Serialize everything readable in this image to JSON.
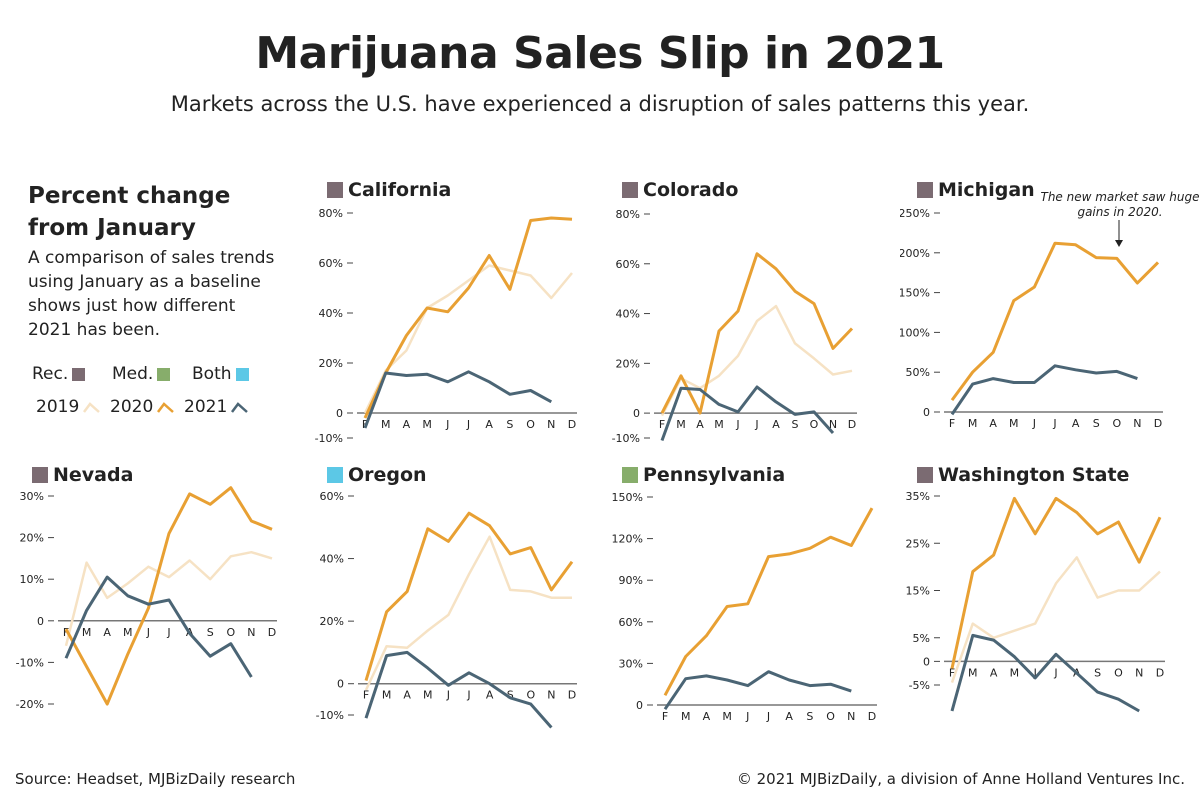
{
  "header": {
    "title": "Marijuana Sales Slip in 2021",
    "subtitle": "Markets across the U.S. have experienced a disruption of sales patterns this year."
  },
  "intro": {
    "heading": "Percent change from January",
    "text": "A comparison of sales trends using January as a baseline shows just how different 2021 has been."
  },
  "legend": {
    "types": [
      {
        "label": "Rec.",
        "color": "#7b6b72"
      },
      {
        "label": "Med.",
        "color": "#87ad6b"
      },
      {
        "label": "Both",
        "color": "#5cc8e6"
      }
    ],
    "years": [
      {
        "label": "2019",
        "color": "#f6e2c4"
      },
      {
        "label": "2020",
        "color": "#e8a033"
      },
      {
        "label": "2021",
        "color": "#4b6575"
      }
    ]
  },
  "annotation": "The new market saw huge gains in 2020.",
  "footer": {
    "source": "Source: Headset, MJBizDaily research",
    "copyright": "© 2021 MJBizDaily, a division of Anne Holland Ventures Inc."
  },
  "chart_data": [
    {
      "type": "line",
      "title": "California",
      "market": "Rec.",
      "ylim": [
        -10,
        80
      ],
      "yticks": [
        {
          "v": 80,
          "label": "80%"
        },
        {
          "v": 60,
          "label": "60%"
        },
        {
          "v": 40,
          "label": "40%"
        },
        {
          "v": 20,
          "label": "20%"
        },
        {
          "v": 0,
          "label": "0"
        },
        {
          "v": -10,
          "label": "-10%"
        }
      ],
      "months": [
        "F",
        "M",
        "A",
        "M",
        "J",
        "J",
        "A",
        "S",
        "O",
        "N",
        "D"
      ],
      "series": [
        {
          "name": "2019",
          "values": [
            0,
            17,
            25,
            42,
            47,
            53,
            59,
            57,
            55,
            46,
            56
          ]
        },
        {
          "name": "2020",
          "values": [
            -2,
            16,
            31,
            42,
            40.5,
            50,
            63,
            49.5,
            77,
            78,
            77.5
          ]
        },
        {
          "name": "2021",
          "values": [
            -6,
            16,
            15,
            15.5,
            12.5,
            16.5,
            12.5,
            7.5,
            9,
            4.5
          ]
        }
      ]
    },
    {
      "type": "line",
      "title": "Colorado",
      "market": "Rec.",
      "ylim": [
        -10,
        80
      ],
      "yticks": [
        {
          "v": 80,
          "label": "80%"
        },
        {
          "v": 60,
          "label": "60%"
        },
        {
          "v": 40,
          "label": "40%"
        },
        {
          "v": 20,
          "label": "20%"
        },
        {
          "v": 0,
          "label": "0"
        },
        {
          "v": -10,
          "label": "-10%"
        }
      ],
      "months": [
        "F",
        "M",
        "A",
        "M",
        "J",
        "J",
        "A",
        "S",
        "O",
        "N",
        "D"
      ],
      "series": [
        {
          "name": "2019",
          "values": [
            -1,
            14,
            10,
            15,
            23,
            37,
            43,
            28,
            22,
            15.5,
            17
          ]
        },
        {
          "name": "2020",
          "values": [
            0,
            15,
            0,
            33,
            41,
            64,
            58,
            49,
            44,
            26,
            34
          ]
        },
        {
          "name": "2021",
          "values": [
            -11,
            10,
            9.5,
            3.5,
            0.5,
            10.5,
            4.5,
            -0.5,
            0.5,
            -8
          ]
        }
      ]
    },
    {
      "type": "line",
      "title": "Michigan",
      "market": "Rec.",
      "ylim": [
        0,
        250
      ],
      "yticks": [
        {
          "v": 250,
          "label": "250%"
        },
        {
          "v": 200,
          "label": "200%"
        },
        {
          "v": 150,
          "label": "150%"
        },
        {
          "v": 100,
          "label": "100%"
        },
        {
          "v": 50,
          "label": "50%"
        },
        {
          "v": 0,
          "label": "0"
        }
      ],
      "months": [
        "F",
        "M",
        "A",
        "M",
        "J",
        "J",
        "A",
        "S",
        "O",
        "N",
        "D"
      ],
      "series": [
        {
          "name": "2020",
          "values": [
            15,
            50,
            75,
            140,
            157,
            212,
            210,
            194,
            193,
            162,
            188
          ]
        },
        {
          "name": "2021",
          "values": [
            -3,
            35,
            42,
            37,
            37,
            58,
            53,
            49,
            51,
            42
          ]
        }
      ]
    },
    {
      "type": "line",
      "title": "Nevada",
      "market": "Rec.",
      "ylim": [
        -20,
        30
      ],
      "yticks": [
        {
          "v": 30,
          "label": "30%"
        },
        {
          "v": 20,
          "label": "20%"
        },
        {
          "v": 10,
          "label": "10%"
        },
        {
          "v": 0,
          "label": "0"
        },
        {
          "v": -10,
          "label": "-10%"
        },
        {
          "v": -20,
          "label": "-20%"
        }
      ],
      "months": [
        "F",
        "M",
        "A",
        "M",
        "J",
        "J",
        "A",
        "S",
        "O",
        "N",
        "D"
      ],
      "series": [
        {
          "name": "2019",
          "values": [
            -6,
            14,
            5.5,
            9,
            13,
            10.5,
            14.5,
            10,
            15.5,
            16.5,
            15
          ]
        },
        {
          "name": "2020",
          "values": [
            -2,
            -11,
            -20,
            -8,
            3,
            21,
            30.5,
            28,
            32,
            24,
            22
          ]
        },
        {
          "name": "2021",
          "values": [
            -9,
            2.5,
            10.5,
            6,
            4,
            5,
            -3,
            -8.5,
            -5.5,
            -13.5
          ]
        }
      ]
    },
    {
      "type": "line",
      "title": "Oregon",
      "market": "Both",
      "ylim": [
        -10,
        60
      ],
      "yticks": [
        {
          "v": 60,
          "label": "60%"
        },
        {
          "v": 40,
          "label": "40%"
        },
        {
          "v": 20,
          "label": "20%"
        },
        {
          "v": 0,
          "label": "0"
        },
        {
          "v": -10,
          "label": "-10%"
        }
      ],
      "months": [
        "F",
        "M",
        "A",
        "M",
        "J",
        "J",
        "A",
        "S",
        "O",
        "N",
        "D"
      ],
      "series": [
        {
          "name": "2019",
          "values": [
            -2,
            12,
            11.5,
            17,
            22,
            35,
            47,
            30,
            29.5,
            27.5,
            27.5
          ]
        },
        {
          "name": "2020",
          "values": [
            1,
            23,
            29.5,
            49.5,
            45.5,
            54.5,
            50.5,
            41.5,
            43.5,
            30,
            39
          ]
        },
        {
          "name": "2021",
          "values": [
            -11,
            9,
            10,
            5,
            -0.5,
            3.5,
            0,
            -4.5,
            -6.5,
            -14
          ]
        }
      ]
    },
    {
      "type": "line",
      "title": "Pennsylvania",
      "market": "Med.",
      "ylim": [
        0,
        150
      ],
      "yticks": [
        {
          "v": 150,
          "label": "150%"
        },
        {
          "v": 120,
          "label": "120%"
        },
        {
          "v": 90,
          "label": "90%"
        },
        {
          "v": 60,
          "label": "60%"
        },
        {
          "v": 30,
          "label": "30%"
        },
        {
          "v": 0,
          "label": "0"
        }
      ],
      "months": [
        "F",
        "M",
        "A",
        "M",
        "J",
        "J",
        "A",
        "S",
        "O",
        "N",
        "D"
      ],
      "series": [
        {
          "name": "2020",
          "values": [
            7,
            35,
            50,
            71,
            73,
            107,
            109,
            113,
            121,
            115,
            142
          ]
        },
        {
          "name": "2021",
          "values": [
            -3,
            19,
            21,
            18,
            14,
            24,
            18,
            14,
            15,
            10
          ]
        }
      ]
    },
    {
      "type": "line",
      "title": "Washington State",
      "market": "Rec.",
      "ylim": [
        -10,
        35
      ],
      "yticks": [
        {
          "v": 35,
          "label": "35%"
        },
        {
          "v": 25,
          "label": "25%"
        },
        {
          "v": 15,
          "label": "15%"
        },
        {
          "v": 5,
          "label": "5%"
        },
        {
          "v": 0,
          "label": "0"
        },
        {
          "v": -5,
          "label": "-5%"
        }
      ],
      "months": [
        "F",
        "M",
        "A",
        "M",
        "J",
        "J",
        "A",
        "S",
        "O",
        "N",
        "D"
      ],
      "series": [
        {
          "name": "2019",
          "values": [
            -4.5,
            8,
            5,
            6.5,
            8,
            16.5,
            22,
            13.5,
            15,
            15,
            19
          ]
        },
        {
          "name": "2020",
          "values": [
            -1.5,
            19,
            22.5,
            34.5,
            27,
            34.5,
            31.5,
            27,
            29.5,
            21,
            30.5
          ]
        },
        {
          "name": "2021",
          "values": [
            -10.5,
            5.5,
            4.5,
            1,
            -3.5,
            1.5,
            -2.5,
            -6.5,
            -8,
            -10.5
          ]
        }
      ]
    }
  ]
}
